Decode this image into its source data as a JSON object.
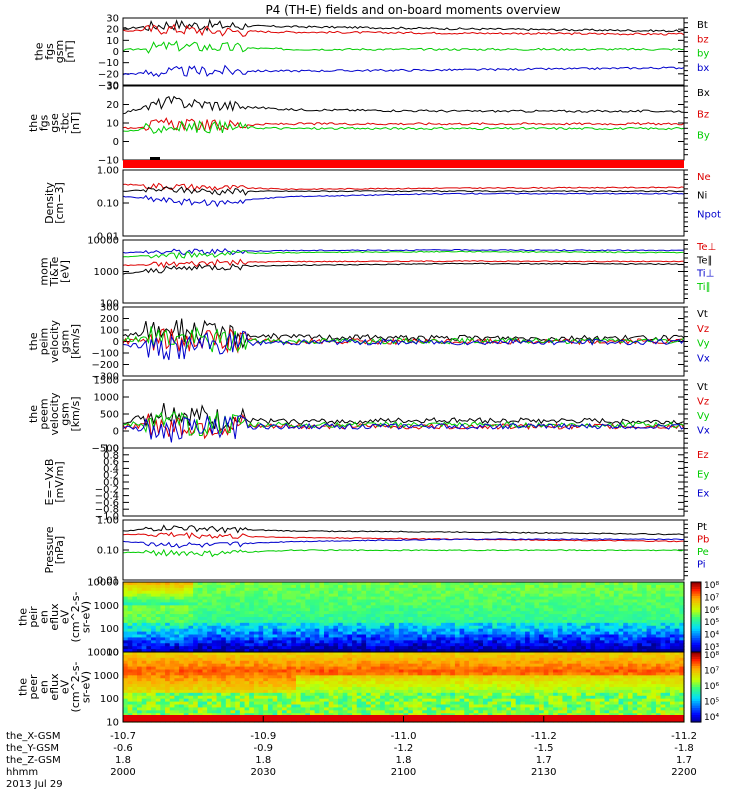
{
  "chart_data": {
    "title": "P4 (TH-E) fields and on-board moments overview",
    "date": "2013 Jul 29",
    "time_label": "hhmm",
    "ephemeris": {
      "labels": [
        "the_X-GSM",
        "the_Y-GSM",
        "the_Z-GSM",
        "hhmm"
      ],
      "columns": [
        {
          "x": "-10.7",
          "y": "-0.6",
          "z": "1.8",
          "t": "2000"
        },
        {
          "x": "-10.9",
          "y": "-0.9",
          "z": "1.8",
          "t": "2030"
        },
        {
          "x": "-11.0",
          "y": "-1.2",
          "z": "1.8",
          "t": "2100"
        },
        {
          "x": "-11.2",
          "y": "-1.5",
          "z": "1.7",
          "t": "2130"
        },
        {
          "x": "-11.2",
          "y": "-1.8",
          "z": "1.7",
          "t": "2200"
        }
      ]
    },
    "panels": [
      {
        "id": "fgs_gsm",
        "type": "line",
        "ylabel": [
          "the",
          "fgs",
          "gsm",
          "[nT]"
        ],
        "ticks": [
          "30",
          "20",
          "10",
          "0",
          "−10",
          "−20",
          "−30"
        ],
        "ylim": [
          -30,
          32
        ],
        "series": [
          {
            "name": "Bt",
            "color": "#000000",
            "points": [
              [
                0,
                22
              ],
              [
                0.08,
                26
              ],
              [
                0.16,
                25
              ],
              [
                0.3,
                24
              ],
              [
                0.6,
                22
              ],
              [
                1,
                20
              ]
            ]
          },
          {
            "name": "bz",
            "color": "#dd0000",
            "points": [
              [
                0,
                20
              ],
              [
                0.08,
                22
              ],
              [
                0.16,
                20
              ],
              [
                0.3,
                19
              ],
              [
                0.6,
                18
              ],
              [
                1,
                17
              ]
            ]
          },
          {
            "name": "by",
            "color": "#00cc00",
            "points": [
              [
                0,
                2
              ],
              [
                0.08,
                6
              ],
              [
                0.16,
                5
              ],
              [
                0.3,
                3
              ],
              [
                0.6,
                3
              ],
              [
                1,
                3
              ]
            ]
          },
          {
            "name": "bx",
            "color": "#0000cc",
            "points": [
              [
                0,
                -20
              ],
              [
                0.08,
                -18
              ],
              [
                0.16,
                -17
              ],
              [
                0.3,
                -17
              ],
              [
                0.6,
                -16
              ],
              [
                1,
                -14
              ]
            ]
          }
        ]
      },
      {
        "id": "fgs_gse",
        "type": "line",
        "ylabel": [
          "the",
          "fgs",
          "gse",
          "-tbc",
          "[nT]"
        ],
        "ticks": [
          "30",
          "20",
          "10",
          "0",
          "−10"
        ],
        "ylim": [
          -15,
          32
        ],
        "series": [
          {
            "name": "Bx",
            "color": "#000000",
            "points": [
              [
                0,
                15
              ],
              [
                0.08,
                22
              ],
              [
                0.16,
                20
              ],
              [
                0.3,
                17
              ],
              [
                0.6,
                16
              ],
              [
                1,
                16
              ]
            ]
          },
          {
            "name": "Bz",
            "color": "#dd0000",
            "points": [
              [
                0,
                5
              ],
              [
                0.08,
                8
              ],
              [
                0.16,
                7
              ],
              [
                0.3,
                8
              ],
              [
                0.6,
                8
              ],
              [
                1,
                8
              ]
            ]
          },
          {
            "name": "By",
            "color": "#00cc00",
            "points": [
              [
                0,
                3
              ],
              [
                0.08,
                6
              ],
              [
                0.16,
                6
              ],
              [
                0.3,
                5
              ],
              [
                0.6,
                5
              ],
              [
                1,
                5
              ]
            ]
          }
        ]
      },
      {
        "id": "density",
        "type": "line",
        "log": true,
        "ylabel": [
          "Density",
          "[cm−3]"
        ],
        "ticks": [
          "1.00",
          "0.10",
          "0.01"
        ],
        "ylim": [
          0.01,
          1.5
        ],
        "series": [
          {
            "name": "Ne",
            "color": "#dd0000",
            "points": [
              [
                0,
                0.5
              ],
              [
                0.08,
                0.45
              ],
              [
                0.16,
                0.4
              ],
              [
                0.3,
                0.35
              ],
              [
                0.6,
                0.38
              ],
              [
                1,
                0.4
              ]
            ]
          },
          {
            "name": "Ni",
            "color": "#000000",
            "points": [
              [
                0,
                0.3
              ],
              [
                0.08,
                0.35
              ],
              [
                0.16,
                0.3
              ],
              [
                0.3,
                0.3
              ],
              [
                0.6,
                0.3
              ],
              [
                1,
                0.3
              ]
            ]
          },
          {
            "name": "Npot",
            "color": "#0000cc",
            "points": [
              [
                0,
                0.2
              ],
              [
                0.08,
                0.15
              ],
              [
                0.16,
                0.12
              ],
              [
                0.3,
                0.2
              ],
              [
                0.6,
                0.25
              ],
              [
                1,
                0.25
              ]
            ]
          }
        ]
      },
      {
        "id": "temperature",
        "type": "line",
        "log": true,
        "ylabel": [
          "mom",
          "Ti&Te",
          "[eV]"
        ],
        "ticks": [
          "10000",
          "1000",
          "100"
        ],
        "ylim": [
          100,
          15000
        ],
        "series": [
          {
            "name": "Te⊥",
            "color": "#dd0000",
            "points": [
              [
                0,
                2000
              ],
              [
                0.08,
                2200
              ],
              [
                0.16,
                2500
              ],
              [
                0.3,
                2700
              ],
              [
                0.6,
                2800
              ],
              [
                1,
                2700
              ]
            ]
          },
          {
            "name": "Te∥",
            "color": "#000000",
            "points": [
              [
                0,
                1000
              ],
              [
                0.08,
                1500
              ],
              [
                0.16,
                1800
              ],
              [
                0.3,
                2000
              ],
              [
                0.6,
                2300
              ],
              [
                1,
                2200
              ]
            ]
          },
          {
            "name": "Ti⊥",
            "color": "#0000cc",
            "points": [
              [
                0,
                5500
              ],
              [
                0.08,
                6000
              ],
              [
                0.16,
                6000
              ],
              [
                0.3,
                6500
              ],
              [
                0.6,
                6800
              ],
              [
                1,
                6500
              ]
            ]
          },
          {
            "name": "Ti∥",
            "color": "#00cc00",
            "points": [
              [
                0,
                4000
              ],
              [
                0.08,
                4500
              ],
              [
                0.16,
                5000
              ],
              [
                0.3,
                5500
              ],
              [
                0.6,
                6000
              ],
              [
                1,
                5500
              ]
            ]
          }
        ]
      },
      {
        "id": "peim_velocity",
        "type": "line",
        "ylabel": [
          "the",
          "peim",
          "velocity",
          "gsm",
          "[km/s]"
        ],
        "ticks": [
          "300",
          "200",
          "100",
          "0",
          "−100",
          "−200",
          "−300"
        ],
        "ylim": [
          -300,
          300
        ],
        "series": [
          {
            "name": "Vt",
            "color": "#000000",
            "points": [
              [
                0,
                40
              ],
              [
                0.08,
                120
              ],
              [
                0.16,
                60
              ],
              [
                0.3,
                40
              ],
              [
                0.6,
                30
              ],
              [
                1,
                30
              ]
            ]
          },
          {
            "name": "Vz",
            "color": "#dd0000",
            "points": [
              [
                0,
                0
              ],
              [
                0.08,
                20
              ],
              [
                0.16,
                10
              ],
              [
                0.3,
                0
              ],
              [
                0.6,
                0
              ],
              [
                1,
                0
              ]
            ]
          },
          {
            "name": "Vy",
            "color": "#00cc00",
            "points": [
              [
                0,
                10
              ],
              [
                0.08,
                40
              ],
              [
                0.16,
                10
              ],
              [
                0.3,
                5
              ],
              [
                0.6,
                5
              ],
              [
                1,
                5
              ]
            ]
          },
          {
            "name": "Vx",
            "color": "#0000cc",
            "points": [
              [
                0,
                -20
              ],
              [
                0.08,
                -60
              ],
              [
                0.16,
                -20
              ],
              [
                0.3,
                -5
              ],
              [
                0.6,
                -5
              ],
              [
                1,
                -5
              ]
            ]
          }
        ]
      },
      {
        "id": "peem_velocity",
        "type": "line",
        "ylabel": [
          "the",
          "peem",
          "velocity",
          "gsm",
          "[km/s]"
        ],
        "ticks": [
          "1500",
          "1000",
          "500",
          "0",
          "−500"
        ],
        "ylim": [
          -700,
          1500
        ],
        "series": [
          {
            "name": "Vt",
            "color": "#000000",
            "points": [
              [
                0,
                150
              ],
              [
                0.08,
                500
              ],
              [
                0.16,
                200
              ],
              [
                0.3,
                150
              ],
              [
                0.6,
                200
              ],
              [
                1,
                150
              ]
            ]
          },
          {
            "name": "Vz",
            "color": "#dd0000",
            "points": [
              [
                0,
                0
              ],
              [
                0.08,
                50
              ],
              [
                0.16,
                0
              ],
              [
                0.3,
                0
              ],
              [
                0.6,
                0
              ],
              [
                1,
                0
              ]
            ]
          },
          {
            "name": "Vy",
            "color": "#00cc00",
            "points": [
              [
                0,
                50
              ],
              [
                0.08,
                100
              ],
              [
                0.16,
                50
              ],
              [
                0.3,
                50
              ],
              [
                0.6,
                50
              ],
              [
                1,
                50
              ]
            ]
          },
          {
            "name": "Vx",
            "color": "#0000cc",
            "points": [
              [
                0,
                -20
              ],
              [
                0.08,
                -150
              ],
              [
                0.16,
                -20
              ],
              [
                0.3,
                0
              ],
              [
                0.6,
                0
              ],
              [
                1,
                0
              ]
            ]
          }
        ]
      },
      {
        "id": "e_field",
        "type": "line",
        "ylabel": [
          "E=−VxB",
          "[mV/m]"
        ],
        "ticks": [
          "1.0",
          "0.8",
          "0.6",
          "0.4",
          "0.2",
          "0.0",
          "−0.2",
          "−0.4",
          "−0.6",
          "−0.8",
          "−1.0"
        ],
        "ylim": [
          -1,
          1
        ],
        "series": [
          {
            "name": "Ez",
            "color": "#dd0000",
            "points": []
          },
          {
            "name": "Ey",
            "color": "#00cc00",
            "points": []
          },
          {
            "name": "Ex",
            "color": "#0000cc",
            "points": []
          }
        ]
      },
      {
        "id": "pressure",
        "type": "line",
        "log": true,
        "ylabel": [
          "Pressure",
          "[nPa]"
        ],
        "ticks": [
          "1.00",
          "0.10",
          "0.01"
        ],
        "ylim": [
          0.01,
          1.5
        ],
        "series": [
          {
            "name": "Pt",
            "color": "#000000",
            "points": [
              [
                0,
                0.6
              ],
              [
                0.08,
                0.8
              ],
              [
                0.16,
                0.7
              ],
              [
                0.3,
                0.6
              ],
              [
                0.6,
                0.55
              ],
              [
                1,
                0.45
              ]
            ]
          },
          {
            "name": "Pb",
            "color": "#dd0000",
            "points": [
              [
                0,
                0.45
              ],
              [
                0.08,
                0.45
              ],
              [
                0.16,
                0.4
              ],
              [
                0.3,
                0.35
              ],
              [
                0.6,
                0.3
              ],
              [
                1,
                0.25
              ]
            ]
          },
          {
            "name": "Pe",
            "color": "#00cc00",
            "points": [
              [
                0,
                0.1
              ],
              [
                0.08,
                0.1
              ],
              [
                0.16,
                0.09
              ],
              [
                0.3,
                0.12
              ],
              [
                0.6,
                0.12
              ],
              [
                1,
                0.12
              ]
            ]
          },
          {
            "name": "Pi",
            "color": "#0000cc",
            "points": [
              [
                0,
                0.25
              ],
              [
                0.08,
                0.2
              ],
              [
                0.16,
                0.18
              ],
              [
                0.3,
                0.25
              ],
              [
                0.6,
                0.3
              ],
              [
                1,
                0.3
              ]
            ]
          }
        ]
      },
      {
        "id": "peir_eflux",
        "type": "heatmap",
        "ylabel": [
          "the",
          "peir",
          "en",
          "eflux",
          "eV",
          "(cm^2-s-",
          "sr-eV)"
        ],
        "ticks": [
          "10000",
          "1000",
          "100",
          "10"
        ],
        "colorbar_ticks": [
          "10⁸",
          "10⁷",
          "10⁶",
          "10⁵",
          "10⁴",
          "10³"
        ]
      },
      {
        "id": "peer_eflux",
        "type": "heatmap",
        "ylabel": [
          "the",
          "peer",
          "en",
          "eflux",
          "eV",
          "(cm^2-s-",
          "sr-eV)"
        ],
        "ticks": [
          "10000",
          "1000",
          "100",
          "10"
        ],
        "colorbar_ticks": [
          "10⁸",
          "10⁷",
          "10⁶",
          "10⁵",
          "10⁴"
        ]
      }
    ]
  }
}
